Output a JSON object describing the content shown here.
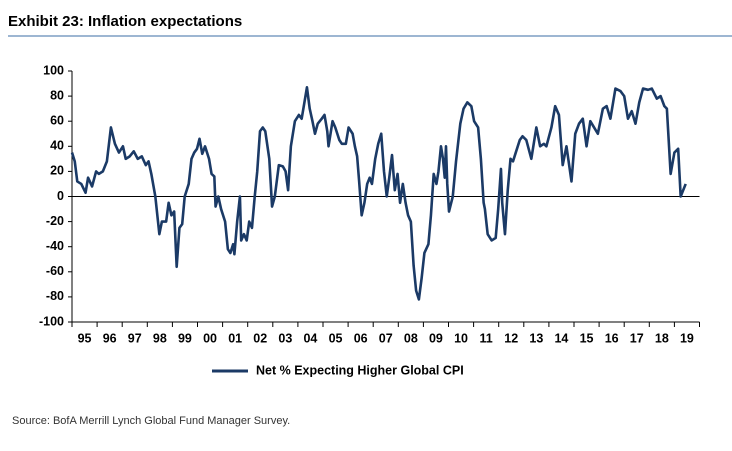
{
  "chart_data": {
    "type": "line",
    "title": "Exhibit 23: Inflation expectations",
    "source": "Source: BofA Merrill Lynch Global Fund Manager Survey.",
    "ylim": [
      -100,
      100
    ],
    "yticks": [
      100,
      80,
      60,
      40,
      20,
      0,
      -20,
      -40,
      -60,
      -80,
      -100
    ],
    "xlim": [
      1995,
      2020
    ],
    "xticks": [
      {
        "value": 1995,
        "label": "95"
      },
      {
        "value": 1996,
        "label": "96"
      },
      {
        "value": 1997,
        "label": "97"
      },
      {
        "value": 1998,
        "label": "98"
      },
      {
        "value": 1999,
        "label": "99"
      },
      {
        "value": 2000,
        "label": "00"
      },
      {
        "value": 2001,
        "label": "01"
      },
      {
        "value": 2002,
        "label": "02"
      },
      {
        "value": 2003,
        "label": "03"
      },
      {
        "value": 2004,
        "label": "04"
      },
      {
        "value": 2005,
        "label": "05"
      },
      {
        "value": 2006,
        "label": "06"
      },
      {
        "value": 2007,
        "label": "07"
      },
      {
        "value": 2008,
        "label": "08"
      },
      {
        "value": 2009,
        "label": "09"
      },
      {
        "value": 2010,
        "label": "10"
      },
      {
        "value": 2011,
        "label": "11"
      },
      {
        "value": 2012,
        "label": "12"
      },
      {
        "value": 2013,
        "label": "13"
      },
      {
        "value": 2014,
        "label": "14"
      },
      {
        "value": 2015,
        "label": "15"
      },
      {
        "value": 2016,
        "label": "16"
      },
      {
        "value": 2017,
        "label": "17"
      },
      {
        "value": 2018,
        "label": "18"
      },
      {
        "value": 2019,
        "label": "19"
      }
    ],
    "grid": false,
    "legend": "bottom",
    "x": [
      1995.0,
      1995.11,
      1995.21,
      1995.37,
      1995.54,
      1995.64,
      1995.8,
      1995.96,
      1996.07,
      1996.23,
      1996.39,
      1996.55,
      1996.71,
      1996.87,
      1997.03,
      1997.14,
      1997.3,
      1997.46,
      1997.62,
      1997.78,
      1997.94,
      1998.05,
      1998.16,
      1998.32,
      1998.48,
      1998.58,
      1998.75,
      1998.85,
      1998.96,
      1999.07,
      1999.17,
      1999.28,
      1999.39,
      1999.49,
      1999.65,
      1999.76,
      1999.87,
      1999.98,
      2000.08,
      2000.19,
      2000.3,
      2000.46,
      2000.56,
      2000.67,
      2000.72,
      2000.83,
      2000.94,
      2001.1,
      2001.21,
      2001.31,
      2001.42,
      2001.47,
      2001.58,
      2001.69,
      2001.74,
      2001.85,
      2001.96,
      2002.06,
      2002.17,
      2002.28,
      2002.38,
      2002.49,
      2002.6,
      2002.7,
      2002.86,
      2002.97,
      2003.08,
      2003.24,
      2003.4,
      2003.51,
      2003.61,
      2003.72,
      2003.88,
      2004.04,
      2004.15,
      2004.26,
      2004.36,
      2004.47,
      2004.58,
      2004.68,
      2004.79,
      2004.95,
      2005.06,
      2005.17,
      2005.22,
      2005.38,
      2005.49,
      2005.65,
      2005.75,
      2005.91,
      2006.02,
      2006.18,
      2006.27,
      2006.36,
      2006.44,
      2006.54,
      2006.65,
      2006.76,
      2006.86,
      2006.95,
      2007.08,
      2007.2,
      2007.32,
      2007.43,
      2007.54,
      2007.64,
      2007.75,
      2007.86,
      2007.97,
      2008.07,
      2008.18,
      2008.29,
      2008.39,
      2008.5,
      2008.61,
      2008.71,
      2008.82,
      2008.93,
      2009.04,
      2009.2,
      2009.3,
      2009.41,
      2009.52,
      2009.6,
      2009.7,
      2009.78,
      2009.85,
      2009.9,
      2009.95,
      2010.02,
      2010.17,
      2010.3,
      2010.47,
      2010.6,
      2010.75,
      2010.91,
      2011.02,
      2011.18,
      2011.29,
      2011.4,
      2011.45,
      2011.56,
      2011.72,
      2011.88,
      2011.98,
      2012.09,
      2012.14,
      2012.25,
      2012.36,
      2012.47,
      2012.57,
      2012.68,
      2012.84,
      2012.95,
      2013.1,
      2013.3,
      2013.5,
      2013.65,
      2013.8,
      2013.9,
      2014.1,
      2014.25,
      2014.4,
      2014.55,
      2014.7,
      2014.9,
      2015.05,
      2015.2,
      2015.35,
      2015.5,
      2015.65,
      2015.8,
      2015.95,
      2016.15,
      2016.3,
      2016.45,
      2016.65,
      2016.85,
      2017.0,
      2017.15,
      2017.3,
      2017.45,
      2017.6,
      2017.75,
      2017.95,
      2018.1,
      2018.3,
      2018.45,
      2018.6,
      2018.7,
      2018.85,
      2019.0,
      2019.15,
      2019.25,
      2019.45
    ],
    "series": [
      {
        "name": "Net % Expecting Higher Global CPI",
        "color": "#1b3a66",
        "values": [
          35,
          28,
          12,
          10,
          3,
          15,
          8,
          20,
          18,
          20,
          28,
          55,
          42,
          35,
          40,
          30,
          32,
          36,
          30,
          32,
          25,
          28,
          18,
          0,
          -30,
          -20,
          -20,
          -5,
          -15,
          -12,
          -56,
          -25,
          -22,
          0,
          10,
          30,
          35,
          38,
          46,
          34,
          40,
          30,
          18,
          16,
          -8,
          0,
          -10,
          -20,
          -42,
          -45,
          -38,
          -46,
          -20,
          0,
          -35,
          -30,
          -35,
          -20,
          -25,
          0,
          20,
          52,
          55,
          52,
          30,
          -8,
          0,
          25,
          24,
          20,
          5,
          40,
          60,
          65,
          62,
          75,
          87,
          70,
          60,
          50,
          58,
          62,
          65,
          52,
          40,
          60,
          55,
          45,
          42,
          42,
          55,
          50,
          40,
          32,
          12,
          -15,
          -5,
          10,
          15,
          10,
          30,
          42,
          50,
          20,
          0,
          15,
          33,
          5,
          18,
          -5,
          10,
          -5,
          -15,
          -20,
          -55,
          -75,
          -82,
          -65,
          -45,
          -38,
          -15,
          18,
          10,
          20,
          40,
          30,
          15,
          40,
          10,
          -12,
          0,
          28,
          58,
          70,
          75,
          72,
          60,
          55,
          30,
          -5,
          -10,
          -30,
          -35,
          -33,
          -10,
          22,
          -5,
          -30,
          5,
          30,
          28,
          35,
          45,
          48,
          45,
          30,
          55,
          40,
          42,
          40,
          55,
          72,
          65,
          25,
          40,
          12,
          50,
          58,
          62,
          40,
          60,
          55,
          50,
          70,
          72,
          62,
          86,
          84,
          80,
          62,
          68,
          58,
          75,
          86,
          85,
          86,
          78,
          80,
          72,
          70,
          18,
          35,
          38,
          0,
          10
        ]
      }
    ]
  }
}
